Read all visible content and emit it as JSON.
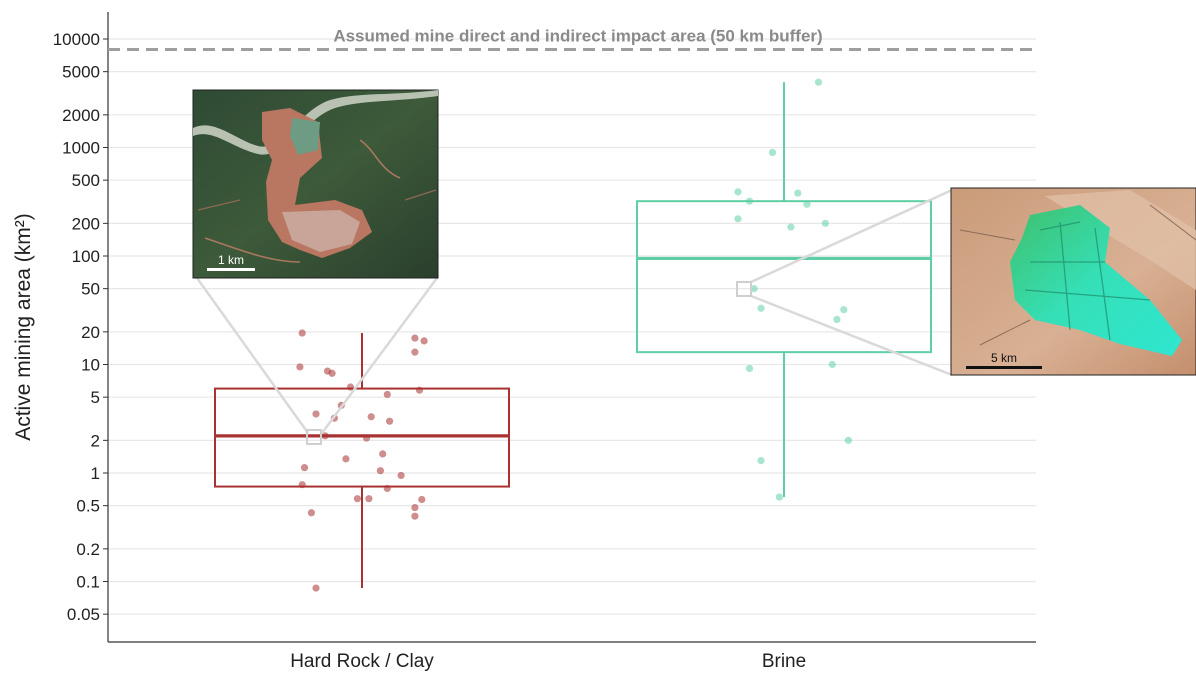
{
  "chart_data": {
    "type": "box",
    "ylabel": "Active mining area (km²)",
    "yscale": "log",
    "ylim": [
      0.035,
      19000
    ],
    "yticks": [
      0.05,
      0.1,
      0.2,
      0.5,
      1,
      2,
      5,
      10,
      20,
      50,
      100,
      200,
      500,
      1000,
      2000,
      5000,
      10000
    ],
    "ytick_labels": [
      "0.05",
      "0.1",
      "0.2",
      "0.5",
      "1",
      "2",
      "5",
      "10",
      "20",
      "50",
      "100",
      "200",
      "500",
      "1000",
      "2000",
      "5000",
      "10000"
    ],
    "grid": true,
    "categories": [
      "Hard Rock / Clay",
      "Brine"
    ],
    "reference_line": {
      "y": 8000,
      "label": "Assumed mine direct and indirect impact area (50 km buffer)",
      "color": "#9e9e9e"
    },
    "series": [
      {
        "category": "Hard Rock / Clay",
        "color": "#a83232",
        "box": {
          "q1": 0.75,
          "median": 2.2,
          "q3": 6.0,
          "whisker_low": 0.087,
          "whisker_high": 19.5
        },
        "points": [
          {
            "jitter": -0.26,
            "y": 19.5
          },
          {
            "jitter": 0.23,
            "y": 17.5
          },
          {
            "jitter": 0.27,
            "y": 16.5
          },
          {
            "jitter": 0.23,
            "y": 13.0
          },
          {
            "jitter": -0.27,
            "y": 9.5
          },
          {
            "jitter": -0.15,
            "y": 8.7
          },
          {
            "jitter": -0.13,
            "y": 8.3
          },
          {
            "jitter": -0.05,
            "y": 6.2
          },
          {
            "jitter": 0.25,
            "y": 5.8
          },
          {
            "jitter": 0.11,
            "y": 5.3
          },
          {
            "jitter": -0.09,
            "y": 4.2
          },
          {
            "jitter": -0.2,
            "y": 3.5
          },
          {
            "jitter": 0.04,
            "y": 3.3
          },
          {
            "jitter": -0.12,
            "y": 3.2
          },
          {
            "jitter": 0.12,
            "y": 3.0
          },
          {
            "jitter": -0.16,
            "y": 2.2
          },
          {
            "jitter": 0.02,
            "y": 2.1
          },
          {
            "jitter": 0.09,
            "y": 1.5
          },
          {
            "jitter": -0.07,
            "y": 1.35
          },
          {
            "jitter": -0.25,
            "y": 1.12
          },
          {
            "jitter": 0.08,
            "y": 1.05
          },
          {
            "jitter": 0.17,
            "y": 0.95
          },
          {
            "jitter": -0.26,
            "y": 0.78
          },
          {
            "jitter": 0.11,
            "y": 0.72
          },
          {
            "jitter": -0.02,
            "y": 0.58
          },
          {
            "jitter": 0.03,
            "y": 0.58
          },
          {
            "jitter": 0.26,
            "y": 0.57
          },
          {
            "jitter": 0.23,
            "y": 0.48
          },
          {
            "jitter": -0.22,
            "y": 0.43
          },
          {
            "jitter": 0.23,
            "y": 0.4
          },
          {
            "jitter": -0.2,
            "y": 0.087
          }
        ]
      },
      {
        "category": "Brine",
        "color": "#5ecfa4",
        "box": {
          "q1": 13.0,
          "median": 95,
          "q3": 320,
          "whisker_low": 0.6,
          "whisker_high": 4000
        },
        "points": [
          {
            "jitter": 0.15,
            "y": 4000
          },
          {
            "jitter": -0.05,
            "y": 900
          },
          {
            "jitter": -0.2,
            "y": 390
          },
          {
            "jitter": 0.06,
            "y": 380
          },
          {
            "jitter": -0.15,
            "y": 320
          },
          {
            "jitter": 0.1,
            "y": 300
          },
          {
            "jitter": -0.2,
            "y": 220
          },
          {
            "jitter": 0.18,
            "y": 200
          },
          {
            "jitter": 0.03,
            "y": 185
          },
          {
            "jitter": -0.13,
            "y": 50
          },
          {
            "jitter": -0.1,
            "y": 33
          },
          {
            "jitter": 0.26,
            "y": 32
          },
          {
            "jitter": 0.23,
            "y": 26
          },
          {
            "jitter": 0.21,
            "y": 10
          },
          {
            "jitter": -0.15,
            "y": 9.2
          },
          {
            "jitter": -0.1,
            "y": 1.3
          },
          {
            "jitter": 0.28,
            "y": 2.0
          },
          {
            "jitter": -0.02,
            "y": 0.6
          }
        ]
      }
    ],
    "insets": [
      {
        "category": "Hard Rock / Clay",
        "highlight_y": 2.2,
        "scale_label": "1 km"
      },
      {
        "category": "Brine",
        "highlight_y": 50,
        "scale_label": "5 km"
      }
    ]
  }
}
